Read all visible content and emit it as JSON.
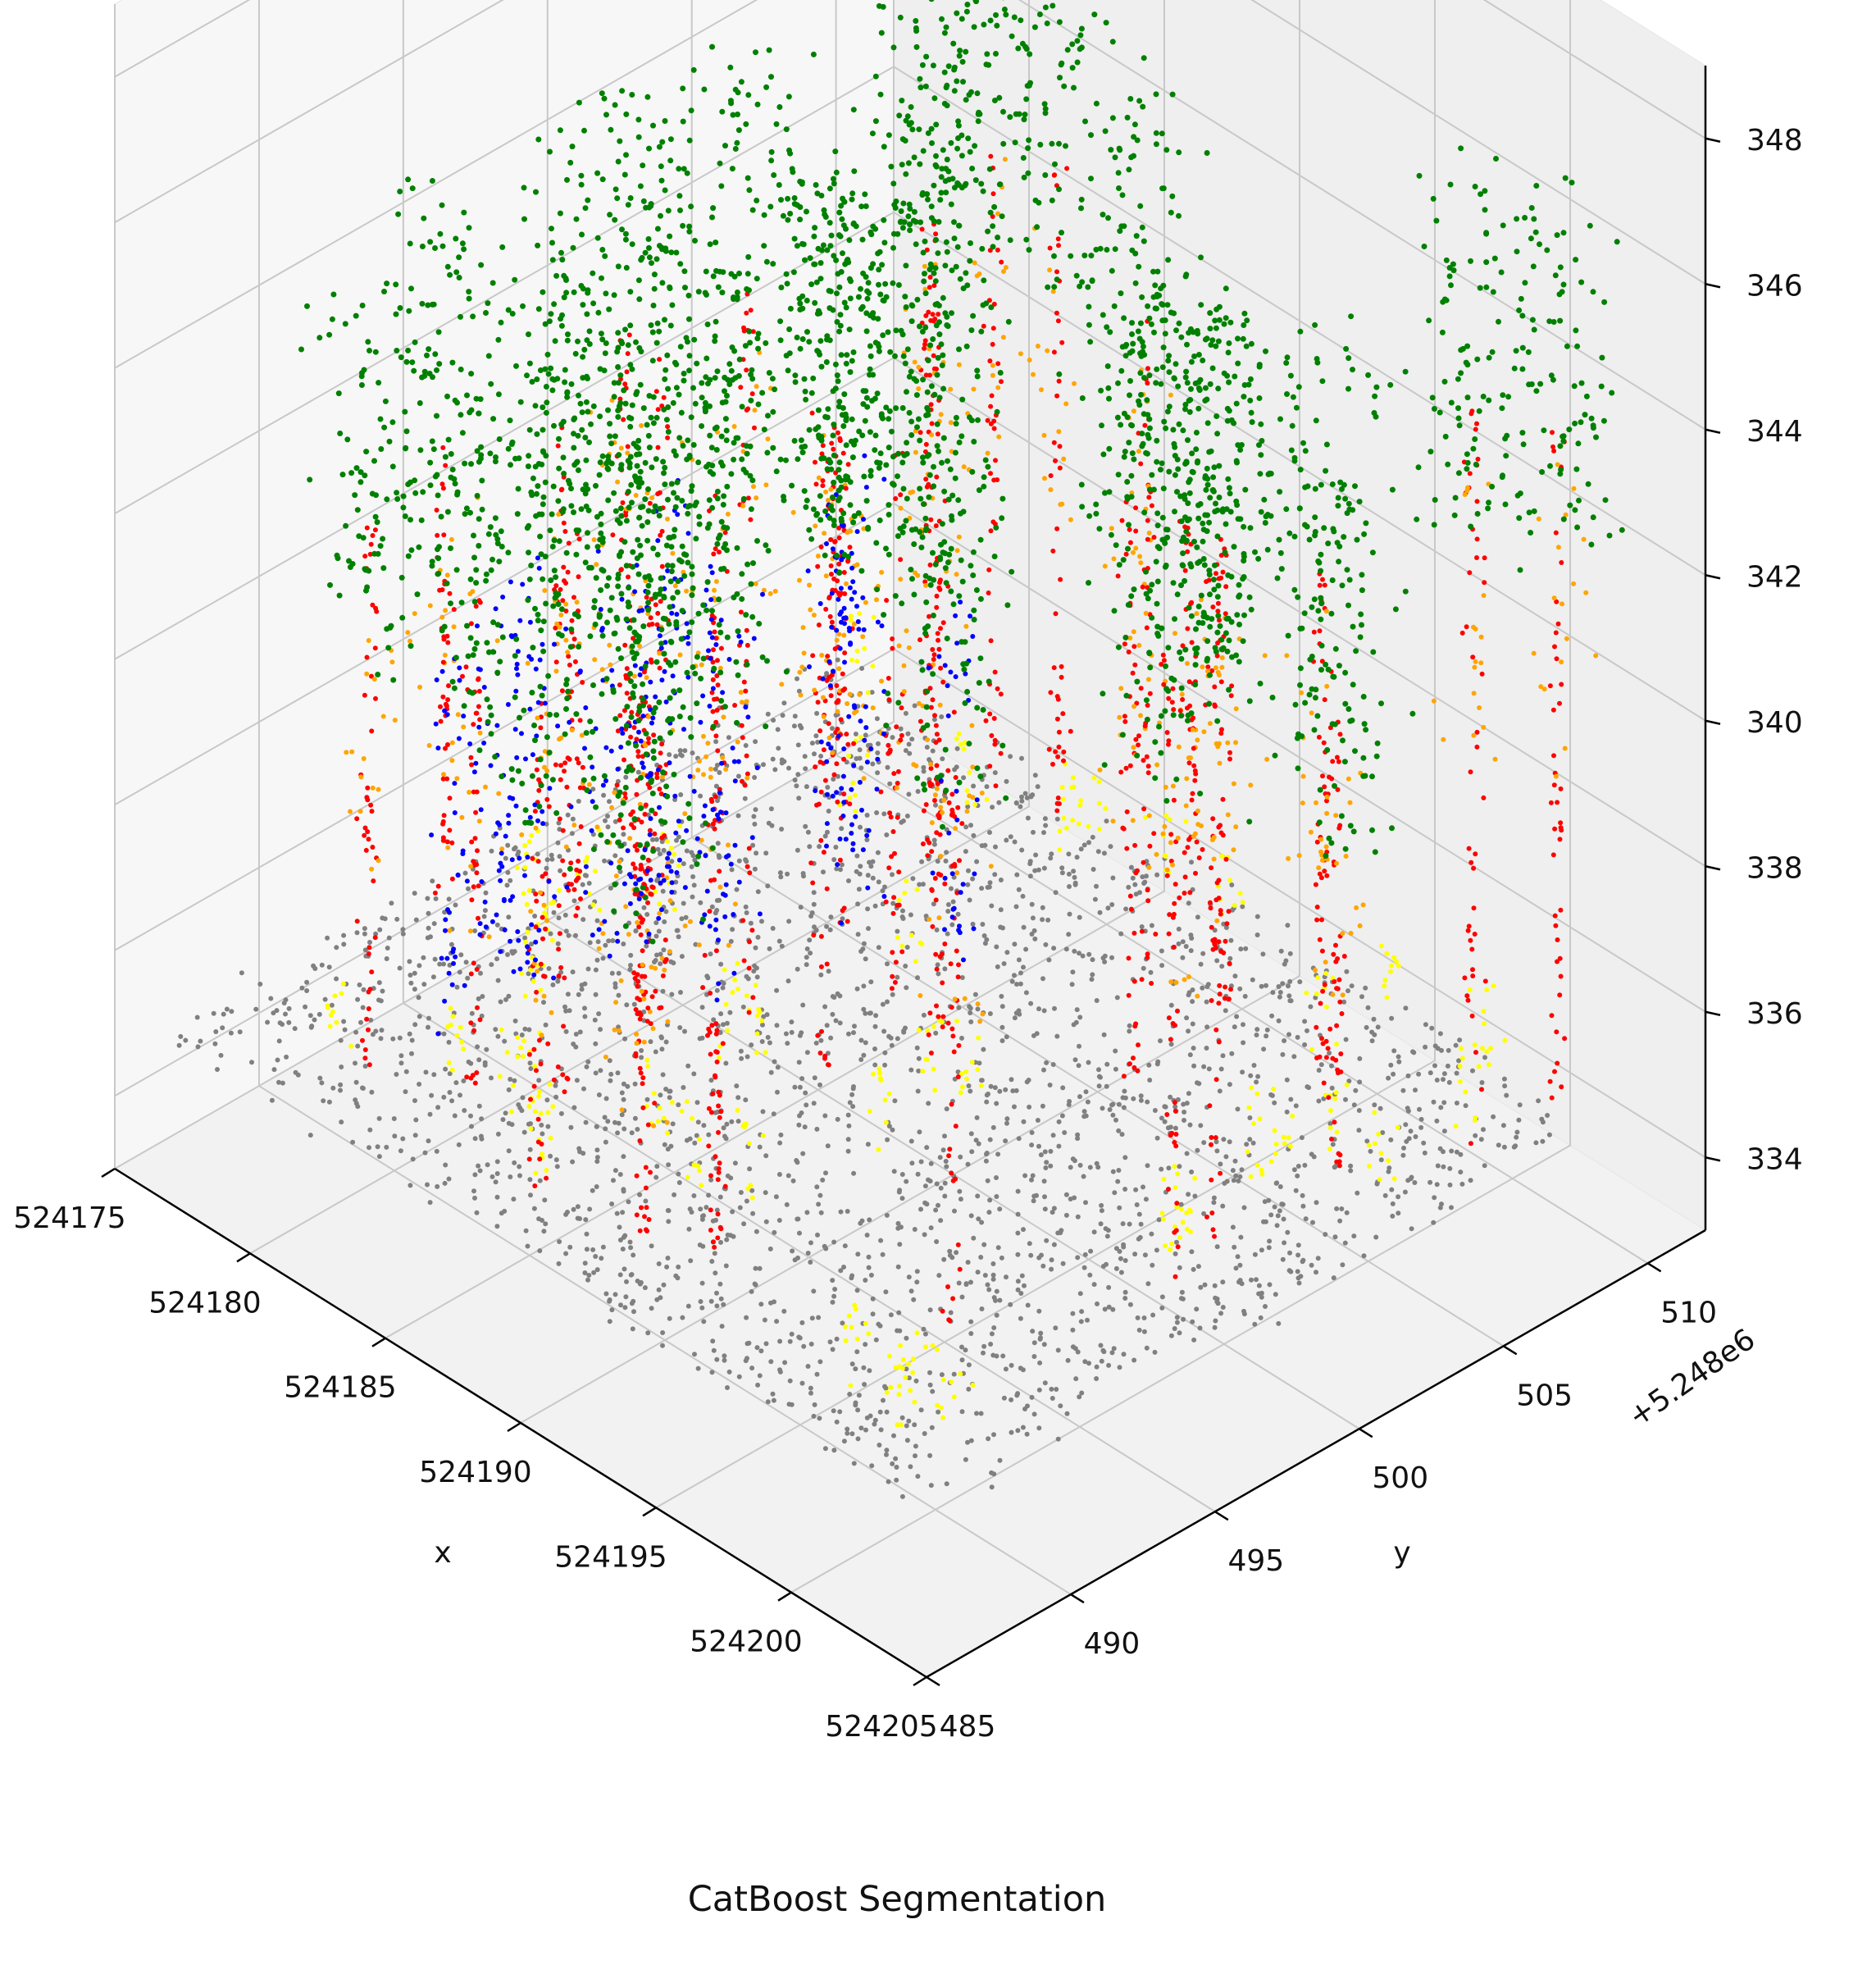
{
  "chart_data": {
    "type": "scatter",
    "projection": "3d",
    "title": "",
    "caption": "CatBoost Segmentation",
    "xlabel": "x",
    "ylabel": "y",
    "zlabel": "",
    "xlim": [
      524175,
      524205
    ],
    "ylim": [
      485,
      512
    ],
    "zlim": [
      333,
      349
    ],
    "y_offset_text": "+5.248e6",
    "x_ticks": [
      "524175",
      "524180",
      "524185",
      "524190",
      "524195",
      "524200",
      "524205"
    ],
    "y_ticks": [
      "485",
      "490",
      "495",
      "500",
      "505",
      "510"
    ],
    "z_ticks": [
      "334",
      "336",
      "338",
      "340",
      "342",
      "344",
      "346",
      "348"
    ],
    "grid": true,
    "legend": false,
    "series": [
      {
        "color": "#808080",
        "role": "ground",
        "z_range": [
          334,
          336
        ]
      },
      {
        "color": "#ffff00",
        "role": "low vegetation",
        "z_range": [
          334,
          337
        ]
      },
      {
        "color": "#ff0000",
        "role": "stems",
        "z_range": [
          334,
          344
        ]
      },
      {
        "color": "#ffa500",
        "role": "branches",
        "z_range": [
          337,
          347
        ]
      },
      {
        "color": "#0000ff",
        "role": "understory",
        "z_range": [
          335,
          342
        ]
      },
      {
        "color": "#008000",
        "role": "canopy",
        "z_range": [
          339,
          349
        ]
      }
    ]
  }
}
